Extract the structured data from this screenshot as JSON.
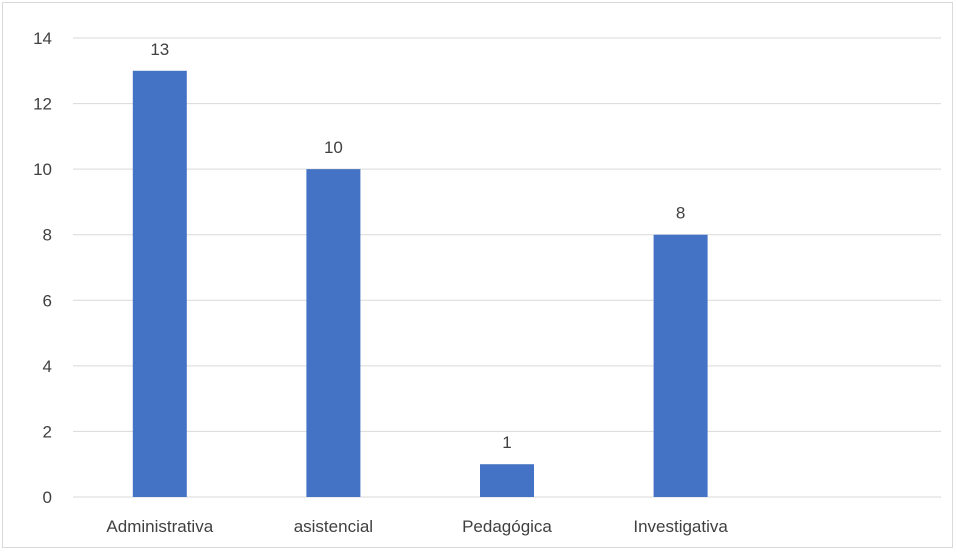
{
  "chart_data": {
    "type": "bar",
    "categories": [
      "Administrativa",
      "asistencial",
      "Pedagógica",
      "Investigativa",
      ""
    ],
    "values": [
      13,
      10,
      1,
      8,
      null
    ],
    "data_labels": [
      "13",
      "10",
      "1",
      "8",
      ""
    ],
    "ylim": [
      0,
      14
    ],
    "yticks": [
      0,
      2,
      4,
      6,
      8,
      10,
      12,
      14
    ],
    "grid": true,
    "legend": "none",
    "bar_color": "#4472C4",
    "grid_color": "#d9d9d9",
    "text_color": "#404040"
  }
}
